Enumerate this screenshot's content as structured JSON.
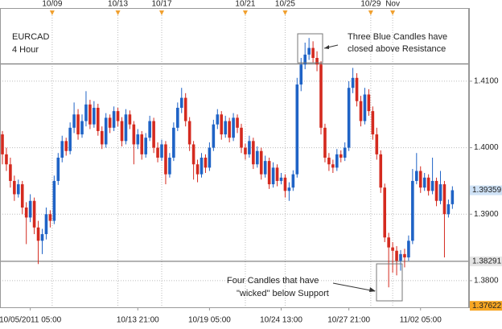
{
  "chart_data": {
    "type": "candlestick",
    "title": "EURCAD",
    "subtitle": "4 Hour",
    "up_color": "#1f63c6",
    "down_color": "#d42a1f",
    "grid": true,
    "ylim": [
      1.376,
      1.421
    ],
    "yticks": [
      {
        "value": 1.41,
        "label": "1.4100"
      },
      {
        "value": 1.4,
        "label": "1.4000"
      },
      {
        "value": 1.39,
        "label": "1.3900"
      },
      {
        "value": 1.38,
        "label": "1.3800"
      }
    ],
    "levels": [
      1.4126,
      1.38291
    ],
    "price_markers": [
      {
        "value": 1.39359,
        "color": "#cfe2f6"
      },
      {
        "value": 1.38291,
        "color": "#e4e4e4"
      },
      {
        "value": 1.37622,
        "color": "#f6a623"
      }
    ],
    "top_dates": [
      {
        "label": "10/09",
        "index": 12.5
      },
      {
        "label": "10/13",
        "index": 29
      },
      {
        "label": "10/17",
        "index": 40
      },
      {
        "label": "10/21",
        "index": 61
      },
      {
        "label": "10/25",
        "index": 71
      },
      {
        "label": "10/29",
        "index": 92.5
      },
      {
        "label": "Nov",
        "index": 98
      }
    ],
    "bottom_dates": [
      {
        "label": "10/05/2011 05:00",
        "index": 7
      },
      {
        "label": "10/13 21:00",
        "index": 34
      },
      {
        "label": "10/19 05:00",
        "index": 52
      },
      {
        "label": "10/24 13:00",
        "index": 70
      },
      {
        "label": "10/27 21:00",
        "index": 87
      },
      {
        "label": "11/02 05:00",
        "index": 105
      }
    ],
    "annotations": [
      {
        "lines": [
          "Three Blue Candles have",
          "closed above Resistance"
        ]
      },
      {
        "lines": [
          "Four Candles that have",
          "\"wicked\" below Support"
        ]
      }
    ],
    "ohlc": [
      [
        1.402,
        1.4025,
        1.3975,
        1.399
      ],
      [
        1.399,
        1.4,
        1.3965,
        1.3975
      ],
      [
        1.3975,
        1.3985,
        1.394,
        1.395
      ],
      [
        1.395,
        1.3958,
        1.392,
        1.393
      ],
      [
        1.393,
        1.3952,
        1.3925,
        1.3945
      ],
      [
        1.3945,
        1.395,
        1.39,
        1.391
      ],
      [
        1.391,
        1.3918,
        1.3855,
        1.3895
      ],
      [
        1.3895,
        1.393,
        1.3888,
        1.392
      ],
      [
        1.392,
        1.3925,
        1.387,
        1.388
      ],
      [
        1.388,
        1.389,
        1.3825,
        1.386
      ],
      [
        1.386,
        1.3878,
        1.384,
        1.387
      ],
      [
        1.387,
        1.391,
        1.3862,
        1.39
      ],
      [
        1.39,
        1.3906,
        1.388,
        1.389
      ],
      [
        1.389,
        1.3958,
        1.3885,
        1.395
      ],
      [
        1.395,
        1.3992,
        1.3944,
        1.3985
      ],
      [
        1.3985,
        1.4018,
        1.3978,
        1.401
      ],
      [
        1.401,
        1.4015,
        1.3988,
        1.3995
      ],
      [
        1.3995,
        1.4038,
        1.399,
        1.403
      ],
      [
        1.403,
        1.4068,
        1.4022,
        1.405
      ],
      [
        1.405,
        1.4058,
        1.4012,
        1.402
      ],
      [
        1.402,
        1.405,
        1.4015,
        1.404
      ],
      [
        1.404,
        1.4085,
        1.4032,
        1.4065
      ],
      [
        1.4065,
        1.4072,
        1.4028,
        1.4035
      ],
      [
        1.4035,
        1.407,
        1.403,
        1.406
      ],
      [
        1.406,
        1.4066,
        1.4018,
        1.4025
      ],
      [
        1.4025,
        1.4032,
        1.3998,
        1.4005
      ],
      [
        1.4005,
        1.4052,
        1.4,
        1.4045
      ],
      [
        1.4045,
        1.405,
        1.4022,
        1.403
      ],
      [
        1.403,
        1.4062,
        1.4025,
        1.4055
      ],
      [
        1.4055,
        1.406,
        1.4032,
        1.404
      ],
      [
        1.404,
        1.4046,
        1.4002,
        1.401
      ],
      [
        1.401,
        1.4058,
        1.4005,
        1.405
      ],
      [
        1.405,
        1.4056,
        1.4028,
        1.4035
      ],
      [
        1.4035,
        1.404,
        1.3975,
        1.4005
      ],
      [
        1.4005,
        1.4028,
        1.3998,
        1.402
      ],
      [
        1.402,
        1.4025,
        1.3982,
        1.399
      ],
      [
        1.399,
        1.4022,
        1.3985,
        1.4015
      ],
      [
        1.4015,
        1.4048,
        1.401,
        1.404
      ],
      [
        1.404,
        1.4045,
        1.3992,
        1.4
      ],
      [
        1.4,
        1.4008,
        1.3978,
        1.3985
      ],
      [
        1.3985,
        1.4012,
        1.398,
        1.4005
      ],
      [
        1.4005,
        1.401,
        1.3945,
        1.396
      ],
      [
        1.396,
        1.3992,
        1.3955,
        1.3985
      ],
      [
        1.3985,
        1.4038,
        1.398,
        1.403
      ],
      [
        1.403,
        1.4068,
        1.4025,
        1.406
      ],
      [
        1.406,
        1.409,
        1.4052,
        1.4075
      ],
      [
        1.4075,
        1.4082,
        1.4032,
        1.404
      ],
      [
        1.404,
        1.4046,
        1.3995,
        1.4005
      ],
      [
        1.4005,
        1.401,
        1.3952,
        1.3975
      ],
      [
        1.3975,
        1.3982,
        1.3948,
        1.396
      ],
      [
        1.396,
        1.3992,
        1.3955,
        1.3985
      ],
      [
        1.3985,
        1.399,
        1.3962,
        1.397
      ],
      [
        1.397,
        1.4008,
        1.3965,
        1.4
      ],
      [
        1.4,
        1.4042,
        1.3995,
        1.4035
      ],
      [
        1.4035,
        1.4058,
        1.4028,
        1.405
      ],
      [
        1.405,
        1.4055,
        1.4012,
        1.402
      ],
      [
        1.402,
        1.4048,
        1.4015,
        1.404
      ],
      [
        1.404,
        1.4045,
        1.4008,
        1.4015
      ],
      [
        1.4015,
        1.4052,
        1.401,
        1.4045
      ],
      [
        1.4045,
        1.405,
        1.4022,
        1.403
      ],
      [
        1.403,
        1.4036,
        1.3992,
        1.4
      ],
      [
        1.4,
        1.4006,
        1.3982,
        1.399
      ],
      [
        1.399,
        1.4018,
        1.3985,
        1.401
      ],
      [
        1.401,
        1.4015,
        1.3968,
        1.3975
      ],
      [
        1.3975,
        1.4002,
        1.397,
        1.3995
      ],
      [
        1.3995,
        1.4,
        1.3952,
        1.396
      ],
      [
        1.396,
        1.3988,
        1.3955,
        1.398
      ],
      [
        1.398,
        1.3985,
        1.3938,
        1.3945
      ],
      [
        1.3945,
        1.3978,
        1.394,
        1.397
      ],
      [
        1.397,
        1.3975,
        1.3942,
        1.395
      ],
      [
        1.395,
        1.3962,
        1.3945,
        1.3955
      ],
      [
        1.3955,
        1.396,
        1.3925,
        1.3935
      ],
      [
        1.3935,
        1.3948,
        1.392,
        1.394
      ],
      [
        1.394,
        1.3966,
        1.3935,
        1.396
      ],
      [
        1.396,
        1.4105,
        1.3955,
        1.4095
      ],
      [
        1.4095,
        1.4135,
        1.4085,
        1.4125
      ],
      [
        1.4125,
        1.4158,
        1.4118,
        1.414
      ],
      [
        1.414,
        1.4165,
        1.4132,
        1.415
      ],
      [
        1.415,
        1.416,
        1.4128,
        1.4135
      ],
      [
        1.4135,
        1.4145,
        1.4115,
        1.4125
      ],
      [
        1.4125,
        1.413,
        1.402,
        1.403
      ],
      [
        1.403,
        1.4036,
        1.3978,
        1.3985
      ],
      [
        1.3985,
        1.3992,
        1.3965,
        1.3975
      ],
      [
        1.3975,
        1.3982,
        1.3962,
        1.397
      ],
      [
        1.397,
        1.3998,
        1.3965,
        1.399
      ],
      [
        1.399,
        1.3996,
        1.3978,
        1.3985
      ],
      [
        1.3985,
        1.4008,
        1.398,
        1.4
      ],
      [
        1.4,
        1.41,
        1.3995,
        1.409
      ],
      [
        1.409,
        1.412,
        1.4082,
        1.4105
      ],
      [
        1.4105,
        1.4112,
        1.4062,
        1.407
      ],
      [
        1.407,
        1.4078,
        1.4032,
        1.404
      ],
      [
        1.404,
        1.409,
        1.4035,
        1.408
      ],
      [
        1.408,
        1.4088,
        1.4048,
        1.4055
      ],
      [
        1.4055,
        1.4062,
        1.4012,
        1.402
      ],
      [
        1.402,
        1.403,
        1.3982,
        1.399
      ],
      [
        1.399,
        1.3996,
        1.3932,
        1.394
      ],
      [
        1.394,
        1.3946,
        1.3858,
        1.3865
      ],
      [
        1.3865,
        1.3872,
        1.379,
        1.385
      ],
      [
        1.385,
        1.3858,
        1.3812,
        1.3845
      ],
      [
        1.3845,
        1.3852,
        1.3808,
        1.383
      ],
      [
        1.383,
        1.3846,
        1.3815,
        1.384
      ],
      [
        1.384,
        1.3848,
        1.382,
        1.3835
      ],
      [
        1.3835,
        1.3868,
        1.383,
        1.386
      ],
      [
        1.386,
        1.3968,
        1.3855,
        1.395
      ],
      [
        1.395,
        1.3992,
        1.3945,
        1.3965
      ],
      [
        1.3965,
        1.3972,
        1.3932,
        1.394
      ],
      [
        1.394,
        1.3962,
        1.3935,
        1.3955
      ],
      [
        1.3955,
        1.396,
        1.3928,
        1.3935
      ],
      [
        1.3935,
        1.3985,
        1.393,
        1.395
      ],
      [
        1.395,
        1.3955,
        1.3912,
        1.392
      ],
      [
        1.392,
        1.3965,
        1.3915,
        1.3945
      ],
      [
        1.3945,
        1.395,
        1.3835,
        1.39
      ],
      [
        1.39,
        1.3922,
        1.3895,
        1.3915
      ],
      [
        1.3915,
        1.3942,
        1.3908,
        1.3936
      ]
    ]
  }
}
